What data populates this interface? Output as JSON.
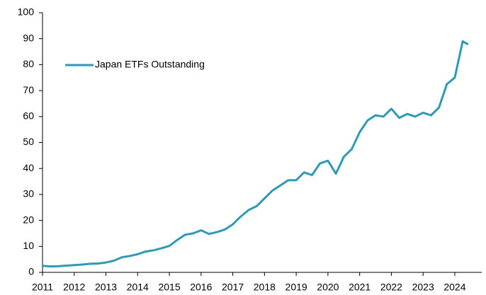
{
  "chart_data": {
    "type": "line",
    "x": [
      2011,
      2011.25,
      2011.5,
      2011.75,
      2012,
      2012.25,
      2012.5,
      2012.75,
      2013,
      2013.25,
      2013.5,
      2013.75,
      2014,
      2014.25,
      2014.5,
      2014.75,
      2015,
      2015.25,
      2015.5,
      2015.75,
      2016,
      2016.25,
      2016.5,
      2016.75,
      2017,
      2017.25,
      2017.5,
      2017.75,
      2018,
      2018.25,
      2018.5,
      2018.75,
      2019,
      2019.25,
      2019.5,
      2019.75,
      2020,
      2020.25,
      2020.5,
      2020.75,
      2021,
      2021.25,
      2021.5,
      2021.75,
      2022,
      2022.25,
      2022.5,
      2022.75,
      2023,
      2023.25,
      2023.5,
      2023.75,
      2024,
      2024.25,
      2024.42
    ],
    "series": [
      {
        "name": "Japan ETFs Outstanding",
        "color": "#2e9ab5",
        "values": [
          2.5,
          2.3,
          2.4,
          2.6,
          2.8,
          3.0,
          3.3,
          3.4,
          3.8,
          4.5,
          5.8,
          6.3,
          7.0,
          8.0,
          8.5,
          9.3,
          10.2,
          12.5,
          14.5,
          15.0,
          16.2,
          14.8,
          15.5,
          16.5,
          18.5,
          21.5,
          24,
          25.5,
          28.5,
          31.5,
          33.5,
          35.5,
          35.5,
          38.5,
          37.5,
          42,
          43,
          38,
          44.5,
          47.5,
          54,
          58.5,
          60.5,
          60,
          63,
          59.5,
          61,
          60,
          61.5,
          60.5,
          63.5,
          72.5,
          75,
          89,
          87.8
        ]
      }
    ],
    "xlim": [
      2011,
      2024.85
    ],
    "xticks": [
      2011,
      2012,
      2013,
      2014,
      2015,
      2016,
      2017,
      2018,
      2019,
      2020,
      2021,
      2022,
      2023,
      2024
    ],
    "ylim": [
      0,
      100
    ],
    "yticks": [
      0,
      10,
      20,
      30,
      40,
      50,
      60,
      70,
      80,
      90,
      100
    ],
    "legend": "upper-left",
    "grid": false
  }
}
